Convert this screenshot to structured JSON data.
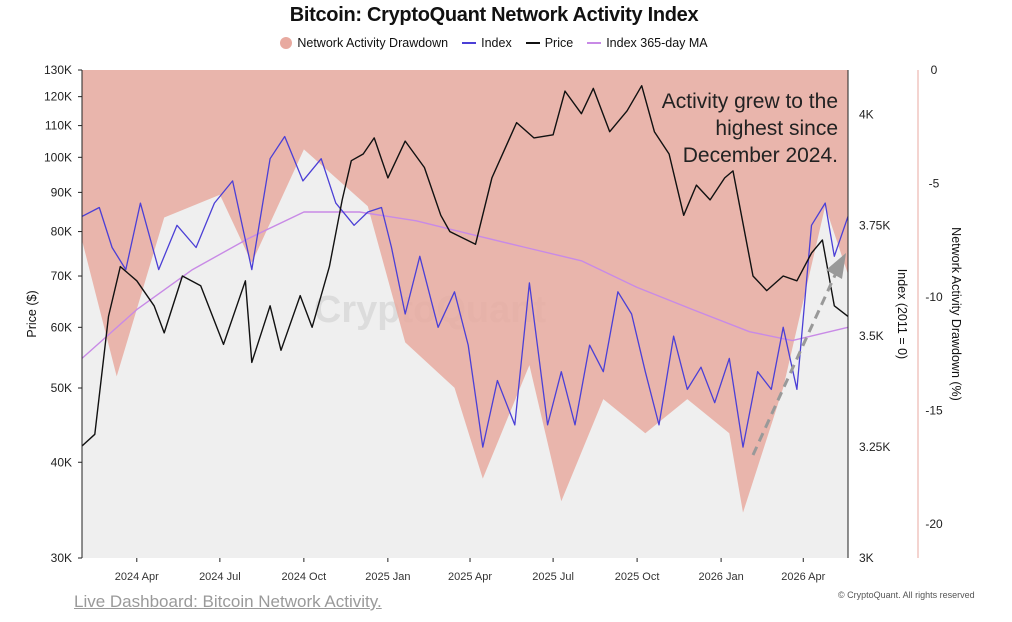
{
  "chart_data": {
    "type": "line",
    "title": "Bitcoin: CryptoQuant Network Activity Index",
    "legend": [
      "Network Activity Drawdown",
      "Index",
      "Price",
      "Index 365-day MA"
    ],
    "legend_position": "top-center",
    "x_ticks": [
      "2024 Apr",
      "2024 Jul",
      "2024 Oct",
      "2025 Jan",
      "2025 Apr",
      "2025 Jul",
      "2025 Oct",
      "2026 Jan",
      "2026 Apr"
    ],
    "x_range": [
      "2024-02-01",
      "2026-05-20"
    ],
    "left_axis": {
      "label": "Price ($)",
      "scale": "log",
      "ticks": [
        "30K",
        "40K",
        "50K",
        "60K",
        "70K",
        "80K",
        "90K",
        "100K",
        "110K",
        "120K",
        "130K"
      ],
      "range": [
        30000,
        130000
      ]
    },
    "right_axis_1": {
      "label": "Index (2011 = 0)",
      "ticks": [
        "4K",
        "3.75K",
        "3.5K",
        "3.25K",
        "3K"
      ],
      "range": [
        3000,
        4100
      ]
    },
    "right_axis_2": {
      "label": "Network Activity Drawdown (%)",
      "ticks": [
        "0",
        "-5",
        "-10",
        "-15",
        "-20"
      ],
      "range": [
        -21.5,
        0
      ]
    },
    "annotation": [
      "Activity grew to the",
      "highest since",
      "December 2024."
    ],
    "watermark": "CryptoQuant",
    "grid": false,
    "series": [
      {
        "name": "Price",
        "color": "#111111",
        "x": [
          "2024-02-01",
          "2024-02-15",
          "2024-03-01",
          "2024-03-14",
          "2024-04-01",
          "2024-04-20",
          "2024-05-01",
          "2024-05-21",
          "2024-06-10",
          "2024-07-05",
          "2024-07-29",
          "2024-08-05",
          "2024-08-25",
          "2024-09-06",
          "2024-09-27",
          "2024-10-10",
          "2024-10-29",
          "2024-11-12",
          "2024-11-22",
          "2024-12-05",
          "2024-12-17",
          "2025-01-01",
          "2025-01-20",
          "2025-02-10",
          "2025-02-28",
          "2025-03-10",
          "2025-04-07",
          "2025-04-25",
          "2025-05-22",
          "2025-06-10",
          "2025-07-01",
          "2025-07-14",
          "2025-08-01",
          "2025-08-14",
          "2025-09-01",
          "2025-09-20",
          "2025-10-06",
          "2025-10-20",
          "2025-11-05",
          "2025-11-21",
          "2025-12-05",
          "2025-12-20",
          "2026-01-05",
          "2026-01-14",
          "2026-02-05",
          "2026-02-20",
          "2026-03-10",
          "2026-03-25",
          "2026-04-10",
          "2026-04-22",
          "2026-05-05",
          "2026-05-20"
        ],
        "values": [
          42000,
          43500,
          62000,
          72000,
          69000,
          64000,
          59000,
          70000,
          68000,
          57000,
          69000,
          54000,
          64000,
          56000,
          66000,
          60000,
          72000,
          88000,
          99000,
          101000,
          106000,
          94000,
          105000,
          97000,
          84000,
          80000,
          77000,
          94000,
          111000,
          106000,
          107000,
          122000,
          114000,
          123000,
          108000,
          115000,
          124000,
          108000,
          101000,
          84000,
          92000,
          88000,
          94000,
          96000,
          70000,
          67000,
          70000,
          69000,
          75000,
          78000,
          64000,
          62000
        ]
      },
      {
        "name": "Index",
        "color": "#4b3fd6",
        "x": [
          "2024-02-01",
          "2024-02-20",
          "2024-03-05",
          "2024-03-20",
          "2024-04-05",
          "2024-04-25",
          "2024-05-15",
          "2024-06-05",
          "2024-06-25",
          "2024-07-15",
          "2024-08-05",
          "2024-08-25",
          "2024-09-10",
          "2024-09-30",
          "2024-10-20",
          "2024-11-05",
          "2024-11-25",
          "2024-12-10",
          "2024-12-25",
          "2025-01-05",
          "2025-01-20",
          "2025-02-05",
          "2025-02-25",
          "2025-03-15",
          "2025-03-30",
          "2025-04-15",
          "2025-05-01",
          "2025-05-20",
          "2025-06-05",
          "2025-06-25",
          "2025-07-10",
          "2025-07-25",
          "2025-08-10",
          "2025-08-25",
          "2025-09-10",
          "2025-09-25",
          "2025-10-10",
          "2025-10-25",
          "2025-11-10",
          "2025-11-25",
          "2025-12-10",
          "2025-12-25",
          "2026-01-10",
          "2026-01-25",
          "2026-02-10",
          "2026-02-25",
          "2026-03-10",
          "2026-03-25",
          "2026-04-10",
          "2026-04-25",
          "2026-05-05",
          "2026-05-20"
        ],
        "values": [
          3770,
          3790,
          3700,
          3650,
          3800,
          3650,
          3750,
          3700,
          3800,
          3850,
          3650,
          3900,
          3950,
          3850,
          3900,
          3800,
          3750,
          3780,
          3790,
          3700,
          3550,
          3680,
          3520,
          3600,
          3480,
          3250,
          3400,
          3300,
          3620,
          3300,
          3420,
          3300,
          3480,
          3420,
          3600,
          3550,
          3420,
          3300,
          3500,
          3380,
          3430,
          3350,
          3450,
          3250,
          3420,
          3380,
          3520,
          3380,
          3750,
          3800,
          3680,
          3770
        ]
      },
      {
        "name": "Index 365-day MA",
        "color": "#c88ae6",
        "x": [
          "2024-02-01",
          "2024-04-01",
          "2024-06-01",
          "2024-08-01",
          "2024-10-01",
          "2024-12-01",
          "2025-02-01",
          "2025-04-01",
          "2025-06-01",
          "2025-08-01",
          "2025-10-01",
          "2025-12-01",
          "2026-02-01",
          "2026-03-20",
          "2026-05-20"
        ],
        "values": [
          3450,
          3560,
          3650,
          3720,
          3780,
          3780,
          3760,
          3730,
          3700,
          3670,
          3610,
          3560,
          3510,
          3490,
          3520
        ]
      },
      {
        "name": "Network Activity Drawdown",
        "color": "#e8aaa0",
        "x": [
          "2024-02-01",
          "2024-03-10",
          "2024-05-01",
          "2024-07-01",
          "2024-08-05",
          "2024-10-01",
          "2024-12-10",
          "2025-01-20",
          "2025-03-15",
          "2025-04-15",
          "2025-06-05",
          "2025-07-10",
          "2025-08-25",
          "2025-10-10",
          "2025-11-25",
          "2026-01-10",
          "2026-01-25",
          "2026-03-10",
          "2026-04-25",
          "2026-05-20"
        ],
        "values": [
          -7.5,
          -13.5,
          -6.5,
          -5.5,
          -8.5,
          -3.5,
          -6,
          -12,
          -14,
          -18,
          -13,
          -19,
          -14.5,
          -16,
          -14.5,
          -16,
          -19.5,
          -14,
          -6,
          -9
        ]
      }
    ]
  },
  "credit": "© CryptoQuant. All rights reserved",
  "link_text": "Live Dashboard: Bitcoin Network Activity."
}
